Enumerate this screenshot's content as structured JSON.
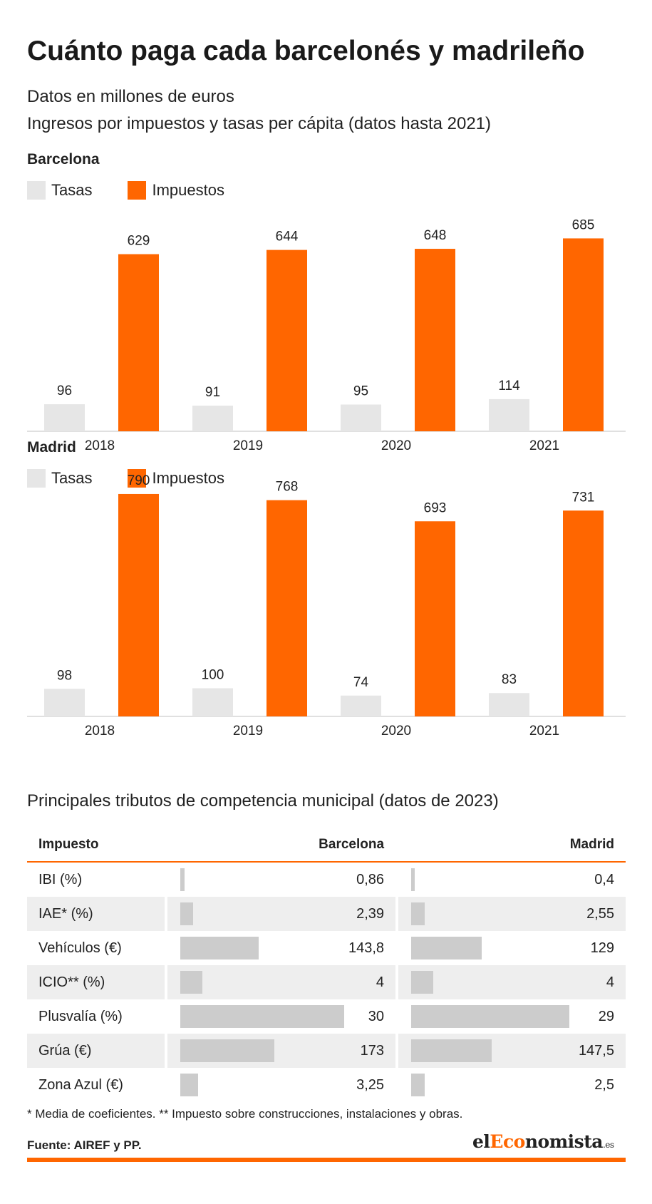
{
  "title": "Cuánto paga cada barcelonés y madrileño",
  "subtitle": "Datos en millones de euros",
  "chart_section_title": "Ingresos por impuestos y tasas per cápita (datos hasta 2021)",
  "legend": {
    "tasas": "Tasas",
    "impuestos": "Impuestos"
  },
  "colors": {
    "tasas": "#e6e6e6",
    "impuestos": "#ff6600",
    "table_bar": "#cccccc",
    "accent": "#ff6600"
  },
  "chart_data": [
    {
      "type": "bar",
      "title": "Barcelona",
      "categories": [
        "2018",
        "2019",
        "2020",
        "2021"
      ],
      "series": [
        {
          "name": "Tasas",
          "values": [
            96,
            91,
            95,
            114
          ]
        },
        {
          "name": "Impuestos",
          "values": [
            629,
            644,
            648,
            685
          ]
        }
      ],
      "ylim": [
        0,
        790
      ],
      "legend": "top-left",
      "grid": false
    },
    {
      "type": "bar",
      "title": "Madrid",
      "categories": [
        "2018",
        "2019",
        "2020",
        "2021"
      ],
      "series": [
        {
          "name": "Tasas",
          "values": [
            98,
            100,
            74,
            83
          ]
        },
        {
          "name": "Impuestos",
          "values": [
            790,
            768,
            693,
            731
          ]
        }
      ],
      "ylim": [
        0,
        790
      ],
      "legend": "top-left",
      "grid": false
    }
  ],
  "table": {
    "section_title": "Principales tributos de competencia municipal (datos de 2023)",
    "headers": {
      "impuesto": "Impuesto",
      "barcelona": "Barcelona",
      "madrid": "Madrid"
    },
    "rows": [
      {
        "label": "IBI (%)",
        "barcelona": "0,86",
        "madrid": "0,4",
        "barcelona_value": 0.86,
        "madrid_value": 0.4,
        "max": 30
      },
      {
        "label": "IAE* (%)",
        "barcelona": "2,39",
        "madrid": "2,55",
        "barcelona_value": 2.39,
        "madrid_value": 2.55,
        "max": 30
      },
      {
        "label": "Vehículos (€)",
        "barcelona": "143,8",
        "madrid": "129",
        "barcelona_value": 143.8,
        "madrid_value": 129,
        "max": 300
      },
      {
        "label": "ICIO** (%)",
        "barcelona": "4",
        "madrid": "4",
        "barcelona_value": 4,
        "madrid_value": 4,
        "max": 30
      },
      {
        "label": "Plusvalía (%)",
        "barcelona": "30",
        "madrid": "29",
        "barcelona_value": 30,
        "madrid_value": 29,
        "max": 30
      },
      {
        "label": "Grúa (€)",
        "barcelona": "173",
        "madrid": "147,5",
        "barcelona_value": 173,
        "madrid_value": 147.5,
        "max": 300
      },
      {
        "label": "Zona Azul (€)",
        "barcelona": "3,25",
        "madrid": "2,5",
        "barcelona_value": 3.25,
        "madrid_value": 2.5,
        "max": 30
      }
    ]
  },
  "footnote": "* Media de coeficientes. ** Impuesto sobre construcciones, instalaciones y obras.",
  "source": "Fuente: AIREF y PP.",
  "logo": {
    "part1": "el",
    "part2": "Eco",
    "part3": "nomista",
    "tld": ".es"
  }
}
